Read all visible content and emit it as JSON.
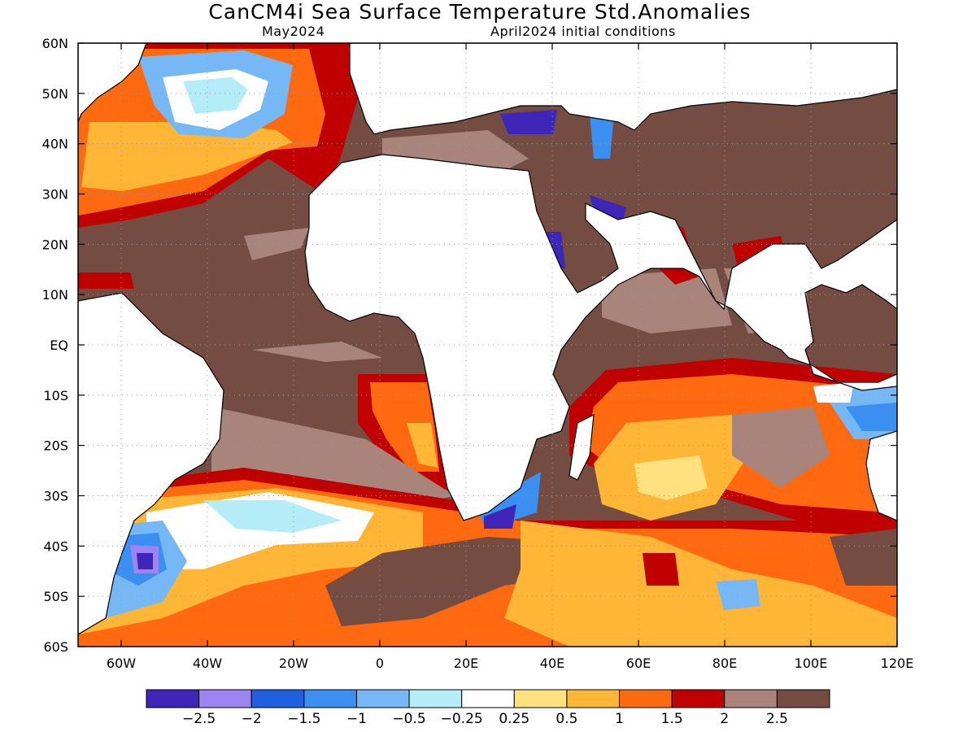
{
  "title": "CanCM4i Sea Surface Temperature Std.Anomalies",
  "subtitle_left": "May2024",
  "subtitle_right": "April2024 initial conditions",
  "lat_labels": [
    "60N",
    "50N",
    "40N",
    "30N",
    "20N",
    "10N",
    "EQ",
    "10S",
    "20S",
    "30S",
    "40S",
    "50S",
    "60S"
  ],
  "lon_labels": [
    "60W",
    "40W",
    "20W",
    "0",
    "20E",
    "40E",
    "60E",
    "80E",
    "100E",
    "120E"
  ],
  "colorbar": {
    "colors": [
      "#3f25b8",
      "#9c84f2",
      "#1f5fe0",
      "#3a8ff0",
      "#76b8f6",
      "#b4ecf8",
      "#ffffff",
      "#ffe27f",
      "#ffb637",
      "#ff6a10",
      "#c00000",
      "#a8847b",
      "#744c42"
    ],
    "labels": [
      "−2.5",
      "−2",
      "−1.5",
      "−1",
      "−0.5",
      "−0.25",
      "0.25",
      "0.5",
      "1",
      "1.5",
      "2",
      "2.5"
    ]
  },
  "colors": {
    "land": "#ffffff",
    "coast": "#000000",
    "grid": "#9a9a9a"
  }
}
